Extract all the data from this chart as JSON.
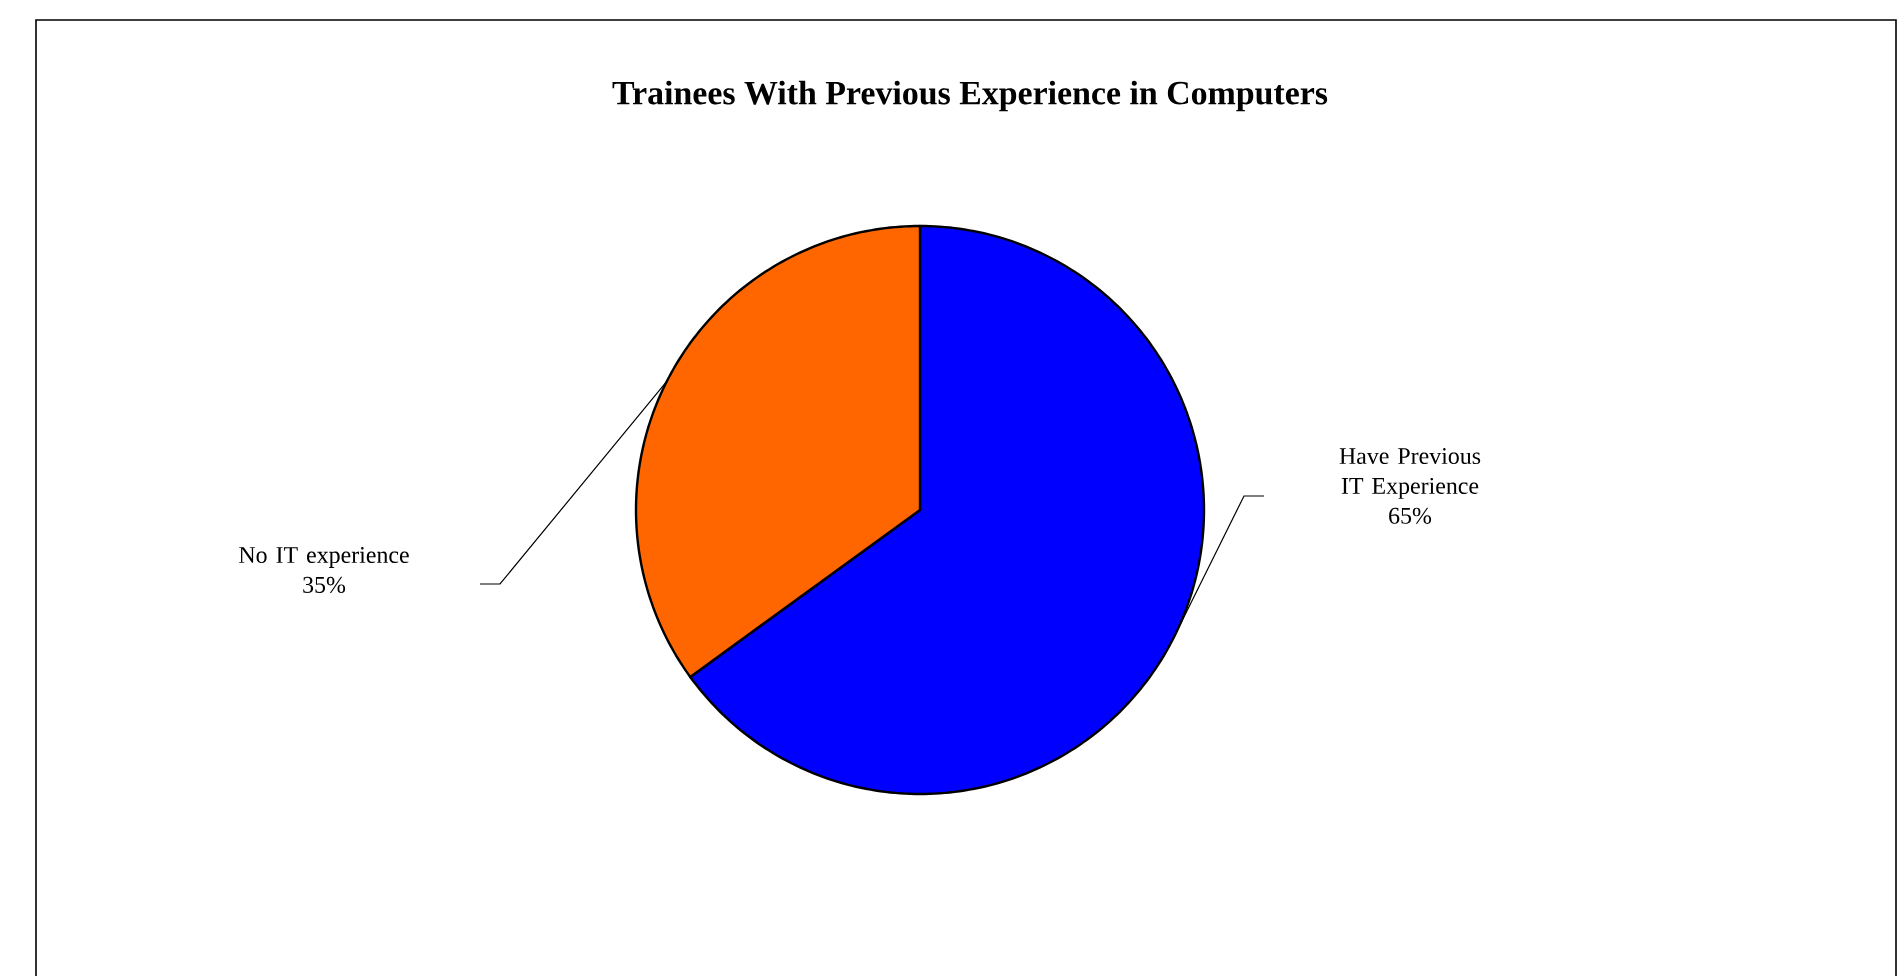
{
  "chart_data": {
    "type": "pie",
    "title": "Trainees With Previous Experience in Computers",
    "categories": [
      "Have Previous IT Experience",
      "No IT experience"
    ],
    "values": [
      65,
      35
    ],
    "value_labels": [
      "65%",
      "35%"
    ],
    "colors": [
      "#0000ff",
      "#ff6600"
    ]
  }
}
